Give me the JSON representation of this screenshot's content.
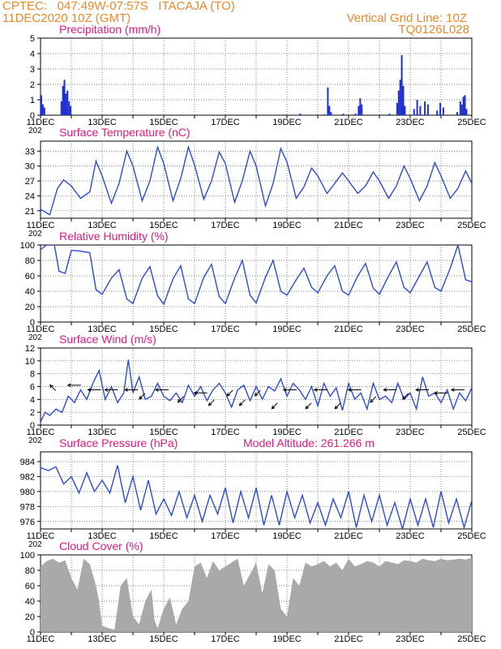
{
  "header": {
    "line1": "CPTEC:   047:49W-07:57S   ITACAJA (TO)",
    "line2": "11DEC2020 10Z (GMT)",
    "right1": "Vertical Grid Line: 10Z",
    "right2": "TQ0126L028"
  },
  "colors": {
    "header": "#e8892c",
    "title": "#e0197f",
    "line": "#2b4bd8",
    "bar": "#1f2fd6",
    "cloud": "#a9a9a9",
    "grid": "#555555"
  },
  "date_labels": [
    "11DEC",
    "13DEC",
    "15DEC",
    "17DEC",
    "19DEC",
    "21DEC",
    "23DEC",
    "25DEC"
  ],
  "year_fragment": "202",
  "chart_data": [
    {
      "id": "precip",
      "type": "bar",
      "title": "Precipitation (mm/h)",
      "ylim": [
        0,
        5
      ],
      "yticks": [
        "0",
        "1",
        "2",
        "3",
        "4",
        "5"
      ],
      "grid": true,
      "x_unit": "days since 11DEC 10Z",
      "points": [
        [
          0.0,
          1.3
        ],
        [
          0.05,
          0.7
        ],
        [
          0.1,
          0.5
        ],
        [
          0.65,
          0.9
        ],
        [
          0.7,
          1.9
        ],
        [
          0.75,
          2.3
        ],
        [
          0.8,
          1.4
        ],
        [
          0.85,
          1.6
        ],
        [
          0.9,
          0.9
        ],
        [
          0.95,
          0.6
        ],
        [
          8.4,
          0.1
        ],
        [
          9.2,
          0.05
        ],
        [
          9.3,
          1.8
        ],
        [
          9.35,
          0.6
        ],
        [
          9.4,
          0.2
        ],
        [
          9.8,
          0.1
        ],
        [
          10.2,
          0.1
        ],
        [
          10.3,
          0.6
        ],
        [
          10.35,
          1.1
        ],
        [
          10.4,
          0.7
        ],
        [
          11.3,
          0.1
        ],
        [
          11.55,
          0.8
        ],
        [
          11.6,
          1.6
        ],
        [
          11.65,
          2.3
        ],
        [
          11.7,
          3.9
        ],
        [
          11.75,
          1.9
        ],
        [
          11.8,
          0.6
        ],
        [
          12.1,
          0.4
        ],
        [
          12.2,
          1.0
        ],
        [
          12.3,
          0.6
        ],
        [
          12.45,
          0.9
        ],
        [
          12.55,
          0.7
        ],
        [
          12.85,
          0.3
        ],
        [
          12.95,
          0.8
        ],
        [
          13.05,
          0.5
        ],
        [
          13.5,
          0.2
        ],
        [
          13.6,
          0.9
        ],
        [
          13.65,
          0.7
        ],
        [
          13.7,
          1.2
        ],
        [
          13.75,
          1.3
        ],
        [
          13.8,
          0.4
        ]
      ]
    },
    {
      "id": "temp",
      "type": "line",
      "title": "Surface Temperature (nC)",
      "ylim": [
        19.5,
        35
      ],
      "yticks": [
        "21",
        "24",
        "27",
        "30",
        "33"
      ],
      "grid": true,
      "x": [
        0,
        0.3,
        0.55,
        0.75,
        1.0,
        1.3,
        1.6,
        1.8,
        2.0,
        2.3,
        2.55,
        2.8,
        3.0,
        3.3,
        3.55,
        3.8,
        4.0,
        4.3,
        4.55,
        4.8,
        5.0,
        5.3,
        5.55,
        5.8,
        6.0,
        6.3,
        6.55,
        6.8,
        7.0,
        7.3,
        7.55,
        7.8,
        8.0,
        8.3,
        8.55,
        8.8,
        9.0,
        9.3,
        9.55,
        9.8,
        10.0,
        10.3,
        10.55,
        10.8,
        11.0,
        11.3,
        11.55,
        11.8,
        12.0,
        12.3,
        12.55,
        12.8,
        13.0,
        13.3,
        13.55,
        13.8,
        14.0
      ],
      "values": [
        21.3,
        20.2,
        25.5,
        27.2,
        26.0,
        23.5,
        24.8,
        31.0,
        28.0,
        22.5,
        26.5,
        33.0,
        30.0,
        23.0,
        27.0,
        33.8,
        30.5,
        23.0,
        27.5,
        33.8,
        30.2,
        23.3,
        27.0,
        32.8,
        30.5,
        22.7,
        27.0,
        33.0,
        30.0,
        22.0,
        26.5,
        33.5,
        30.8,
        23.5,
        25.8,
        29.6,
        28.0,
        24.5,
        26.5,
        28.6,
        27.0,
        24.5,
        26.0,
        28.8,
        27.0,
        23.5,
        26.0,
        30.0,
        27.5,
        23.0,
        26.0,
        30.7,
        28.0,
        23.5,
        25.5,
        29.0,
        26.5
      ]
    },
    {
      "id": "rh",
      "type": "line",
      "title": "Relative Humidity (%)",
      "ylim": [
        0,
        100
      ],
      "yticks": [
        "0",
        "20",
        "40",
        "60",
        "80",
        "100"
      ],
      "grid": true,
      "x": [
        0,
        0.2,
        0.45,
        0.6,
        0.8,
        1.0,
        1.3,
        1.6,
        1.8,
        2.0,
        2.3,
        2.55,
        2.8,
        3.0,
        3.3,
        3.55,
        3.8,
        4.0,
        4.3,
        4.55,
        4.8,
        5.0,
        5.3,
        5.55,
        5.8,
        6.0,
        6.3,
        6.55,
        6.8,
        7.0,
        7.3,
        7.55,
        7.8,
        8.0,
        8.3,
        8.55,
        8.8,
        9.0,
        9.3,
        9.55,
        9.8,
        10.0,
        10.3,
        10.55,
        10.8,
        11.0,
        11.3,
        11.55,
        11.8,
        12.0,
        12.3,
        12.55,
        12.8,
        13.0,
        13.3,
        13.55,
        13.8,
        14.0
      ],
      "values": [
        94,
        100,
        100,
        66,
        63,
        93,
        92,
        90,
        42,
        36,
        57,
        68,
        30,
        24,
        57,
        72,
        34,
        23,
        56,
        73,
        30,
        24,
        58,
        75,
        33,
        24,
        57,
        80,
        35,
        25,
        58,
        80,
        40,
        35,
        55,
        70,
        45,
        38,
        60,
        73,
        40,
        35,
        60,
        76,
        44,
        36,
        60,
        78,
        45,
        38,
        60,
        78,
        45,
        40,
        70,
        100,
        55,
        52
      ]
    },
    {
      "id": "wind",
      "type": "line",
      "title": "Surface Wind (m/s)",
      "ylim": [
        0,
        12
      ],
      "yticks": [
        "0",
        "2",
        "4",
        "6",
        "8",
        "10",
        "12"
      ],
      "grid": true,
      "x": [
        0,
        0.15,
        0.3,
        0.5,
        0.7,
        0.9,
        1.1,
        1.3,
        1.5,
        1.7,
        1.9,
        2.1,
        2.3,
        2.5,
        2.7,
        2.85,
        3.0,
        3.2,
        3.4,
        3.6,
        3.8,
        4.0,
        4.2,
        4.4,
        4.6,
        4.8,
        5.0,
        5.2,
        5.4,
        5.6,
        5.8,
        6.0,
        6.2,
        6.4,
        6.6,
        6.8,
        7.0,
        7.2,
        7.4,
        7.6,
        7.8,
        8.0,
        8.2,
        8.4,
        8.6,
        8.8,
        9.0,
        9.2,
        9.4,
        9.6,
        9.8,
        10.0,
        10.2,
        10.4,
        10.6,
        10.8,
        11.0,
        11.2,
        11.4,
        11.6,
        11.8,
        12.0,
        12.2,
        12.4,
        12.6,
        12.8,
        13.0,
        13.2,
        13.4,
        13.6,
        13.8,
        14.0
      ],
      "values": [
        0.5,
        2.0,
        1.5,
        2.5,
        2.0,
        4.5,
        3.5,
        5.5,
        4.0,
        6.5,
        8.5,
        4.0,
        6.0,
        3.5,
        5.0,
        10.2,
        5.0,
        7.5,
        4.0,
        4.5,
        6.5,
        4.5,
        3.8,
        5.0,
        3.5,
        6.2,
        4.5,
        6.0,
        3.8,
        5.5,
        6.5,
        5.0,
        2.8,
        5.5,
        6.2,
        3.8,
        6.0,
        4.0,
        6.0,
        5.3,
        7.2,
        4.5,
        6.5,
        5.5,
        4.0,
        6.0,
        3.0,
        6.5,
        4.5,
        5.8,
        2.3,
        6.5,
        4.0,
        5.0,
        2.5,
        6.5,
        4.0,
        4.5,
        3.5,
        6.5,
        4.0,
        5.0,
        2.5,
        7.5,
        4.5,
        5.0,
        3.5,
        5.5,
        2.5,
        5.0,
        3.8,
        5.8
      ],
      "arrows": [
        {
          "t": 0.4,
          "v": 5.8,
          "dir": "nw"
        },
        {
          "t": 1.1,
          "v": 6.2,
          "dir": "w"
        },
        {
          "t": 1.75,
          "v": 5.5,
          "dir": "w"
        },
        {
          "t": 2.3,
          "v": 5.5,
          "dir": "w"
        },
        {
          "t": 2.95,
          "v": 5.5,
          "dir": "w"
        },
        {
          "t": 3.3,
          "v": 4.5,
          "dir": "sw"
        },
        {
          "t": 3.95,
          "v": 5.5,
          "dir": "w"
        },
        {
          "t": 4.55,
          "v": 4.0,
          "dir": "sw"
        },
        {
          "t": 5.2,
          "v": 5.0,
          "dir": "w"
        },
        {
          "t": 5.55,
          "v": 3.5,
          "dir": "sw"
        },
        {
          "t": 6.15,
          "v": 5.0,
          "dir": "sw"
        },
        {
          "t": 6.55,
          "v": 3.5,
          "dir": "sw"
        },
        {
          "t": 7.05,
          "v": 5.0,
          "dir": "sw"
        },
        {
          "t": 7.6,
          "v": 3.0,
          "dir": "sw"
        },
        {
          "t": 8.1,
          "v": 5.5,
          "dir": "w"
        },
        {
          "t": 8.7,
          "v": 3.0,
          "dir": "sw"
        },
        {
          "t": 9.1,
          "v": 5.5,
          "dir": "w"
        },
        {
          "t": 9.65,
          "v": 3.0,
          "dir": "sw"
        },
        {
          "t": 10.2,
          "v": 5.5,
          "dir": "w"
        },
        {
          "t": 10.8,
          "v": 4.0,
          "dir": "sw"
        },
        {
          "t": 11.35,
          "v": 5.5,
          "dir": "w"
        },
        {
          "t": 11.85,
          "v": 4.5,
          "dir": "sw"
        },
        {
          "t": 12.4,
          "v": 5.5,
          "dir": "w"
        },
        {
          "t": 13.0,
          "v": 5.0,
          "dir": "w"
        },
        {
          "t": 13.55,
          "v": 5.5,
          "dir": "w"
        }
      ]
    },
    {
      "id": "pres",
      "type": "line",
      "title": "Surface Pressure (hPa)",
      "subtitle": "Model Altitude: 261.266 m",
      "ylim": [
        975,
        985.3
      ],
      "yticks": [
        "976",
        "978",
        "980",
        "982",
        "984"
      ],
      "grid": true,
      "x": [
        0,
        0.25,
        0.5,
        0.75,
        1.0,
        1.25,
        1.5,
        1.75,
        2.0,
        2.25,
        2.5,
        2.75,
        3.0,
        3.25,
        3.5,
        3.75,
        4.0,
        4.25,
        4.5,
        4.75,
        5.0,
        5.25,
        5.5,
        5.75,
        6.0,
        6.25,
        6.5,
        6.75,
        7.0,
        7.25,
        7.5,
        7.75,
        8.0,
        8.25,
        8.5,
        8.75,
        9.0,
        9.25,
        9.5,
        9.75,
        10.0,
        10.25,
        10.5,
        10.75,
        11.0,
        11.25,
        11.5,
        11.75,
        12.0,
        12.25,
        12.5,
        12.75,
        13.0,
        13.25,
        13.5,
        13.75,
        14.0
      ],
      "values": [
        983.2,
        982.8,
        983.3,
        981.0,
        982.0,
        979.8,
        982.5,
        980.0,
        981.5,
        979.8,
        983.5,
        978.5,
        982.0,
        977.5,
        981.5,
        977.0,
        979.0,
        976.8,
        980.0,
        976.5,
        979.5,
        976.0,
        979.5,
        977.0,
        980.5,
        975.8,
        980.0,
        976.5,
        980.5,
        975.5,
        979.5,
        975.5,
        980.0,
        976.5,
        979.5,
        975.8,
        978.5,
        975.5,
        979.0,
        976.5,
        980.0,
        975.2,
        979.5,
        976.0,
        979.5,
        975.5,
        978.5,
        975.0,
        979.0,
        975.5,
        979.0,
        975.2,
        980.0,
        975.8,
        979.0,
        975.2,
        978.8
      ]
    },
    {
      "id": "cloud",
      "type": "area",
      "title": "Cloud Cover (%)",
      "ylim": [
        0,
        100
      ],
      "yticks": [
        "0",
        "20",
        "40",
        "60",
        "80",
        "100"
      ],
      "grid": true,
      "x": [
        0,
        0.2,
        0.4,
        0.6,
        0.8,
        1.0,
        1.2,
        1.4,
        1.6,
        1.8,
        1.9,
        2.0,
        2.2,
        2.4,
        2.6,
        2.8,
        3.0,
        3.2,
        3.4,
        3.6,
        3.7,
        3.8,
        4.0,
        4.2,
        4.4,
        4.6,
        4.8,
        5.0,
        5.2,
        5.4,
        5.6,
        5.8,
        6.0,
        6.2,
        6.4,
        6.6,
        6.8,
        7.0,
        7.2,
        7.4,
        7.6,
        7.8,
        8.0,
        8.2,
        8.4,
        8.6,
        8.8,
        9.0,
        9.2,
        9.4,
        9.6,
        9.8,
        10.0,
        10.2,
        10.4,
        10.6,
        10.8,
        11.0,
        11.2,
        11.4,
        11.6,
        11.8,
        12.0,
        12.2,
        12.4,
        12.6,
        12.8,
        13.0,
        13.2,
        13.4,
        13.6,
        13.8,
        14.0
      ],
      "values": [
        85,
        92,
        95,
        90,
        93,
        70,
        55,
        95,
        88,
        60,
        40,
        8,
        5,
        3,
        60,
        70,
        20,
        10,
        40,
        55,
        15,
        5,
        30,
        45,
        10,
        30,
        40,
        85,
        90,
        70,
        92,
        80,
        85,
        90,
        95,
        60,
        75,
        90,
        50,
        88,
        80,
        30,
        20,
        70,
        60,
        90,
        85,
        88,
        92,
        85,
        90,
        80,
        95,
        85,
        88,
        92,
        90,
        85,
        92,
        90,
        88,
        93,
        92,
        90,
        95,
        93,
        92,
        95,
        93,
        94,
        95,
        94,
        96
      ]
    }
  ]
}
